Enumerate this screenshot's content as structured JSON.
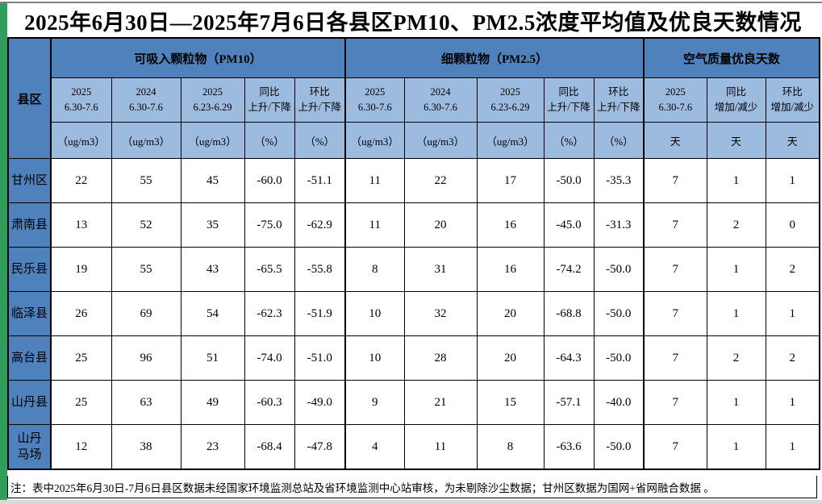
{
  "title": "2025年6月30日—2025年7月6日各县区PM10、PM2.5浓度平均值及优良天数情况",
  "note": "注：表中2025年6月30日-7月6日县区数据未经国家环境监测总站及省环境监测中心站审核，为未剔除沙尘数据；甘州区数据为国网+省网融合数据 。",
  "colors": {
    "group_header_bg": "#4f81bd",
    "subheader_bg": "#9dbadf",
    "left_strip_green": "#2f9e5a",
    "bottom_strip_gray": "#d9d9d9",
    "border": "#000000"
  },
  "table": {
    "corner_label": "县区",
    "groups": [
      {
        "label": "可吸入颗粒物（PM10）",
        "span": 5
      },
      {
        "label": "细颗粒物（PM2.5）",
        "span": 5
      },
      {
        "label": "空气质量优良天数",
        "span": 3
      }
    ],
    "subheaders": [
      "2025\n6.30-7.6",
      "2024\n6.30-7.6",
      "2025\n6.23-6.29",
      "同比\n上升/下降",
      "环比\n上升/下降",
      "2025\n6.30-7.6",
      "2024\n6.30-7.6",
      "2025\n6.23-6.29",
      "同比\n上升/下降",
      "环比\n上升/下降",
      "2025\n6.30-7.6",
      "同比\n增加/减少",
      "环比\n增加/减少"
    ],
    "units": [
      "（ug/m3）",
      "（ug/m3）",
      "（ug/m3）",
      "（%）",
      "（%）",
      "（ug/m3）",
      "（ug/m3）",
      "（ug/m3）",
      "（%）",
      "（%）",
      "天",
      "天",
      "天"
    ],
    "rows": [
      {
        "name": "甘州区",
        "values": [
          "22",
          "55",
          "45",
          "-60.0",
          "-51.1",
          "11",
          "22",
          "17",
          "-50.0",
          "-35.3",
          "7",
          "1",
          "1"
        ]
      },
      {
        "name": "肃南县",
        "values": [
          "13",
          "52",
          "35",
          "-75.0",
          "-62.9",
          "11",
          "20",
          "16",
          "-45.0",
          "-31.3",
          "7",
          "2",
          "0"
        ]
      },
      {
        "name": "民乐县",
        "values": [
          "19",
          "55",
          "43",
          "-65.5",
          "-55.8",
          "8",
          "31",
          "16",
          "-74.2",
          "-50.0",
          "7",
          "1",
          "2"
        ]
      },
      {
        "name": "临泽县",
        "values": [
          "26",
          "69",
          "54",
          "-62.3",
          "-51.9",
          "10",
          "32",
          "20",
          "-68.8",
          "-50.0",
          "7",
          "1",
          "1"
        ]
      },
      {
        "name": "高台县",
        "values": [
          "25",
          "96",
          "51",
          "-74.0",
          "-51.0",
          "10",
          "28",
          "20",
          "-64.3",
          "-50.0",
          "7",
          "2",
          "2"
        ]
      },
      {
        "name": "山丹县",
        "values": [
          "25",
          "63",
          "49",
          "-60.3",
          "-49.0",
          "9",
          "21",
          "15",
          "-57.1",
          "-40.0",
          "7",
          "1",
          "1"
        ]
      },
      {
        "name": "山丹\n马场",
        "values": [
          "12",
          "38",
          "23",
          "-68.4",
          "-47.8",
          "4",
          "11",
          "8",
          "-63.6",
          "-50.0",
          "7",
          "1",
          "1"
        ]
      }
    ]
  }
}
